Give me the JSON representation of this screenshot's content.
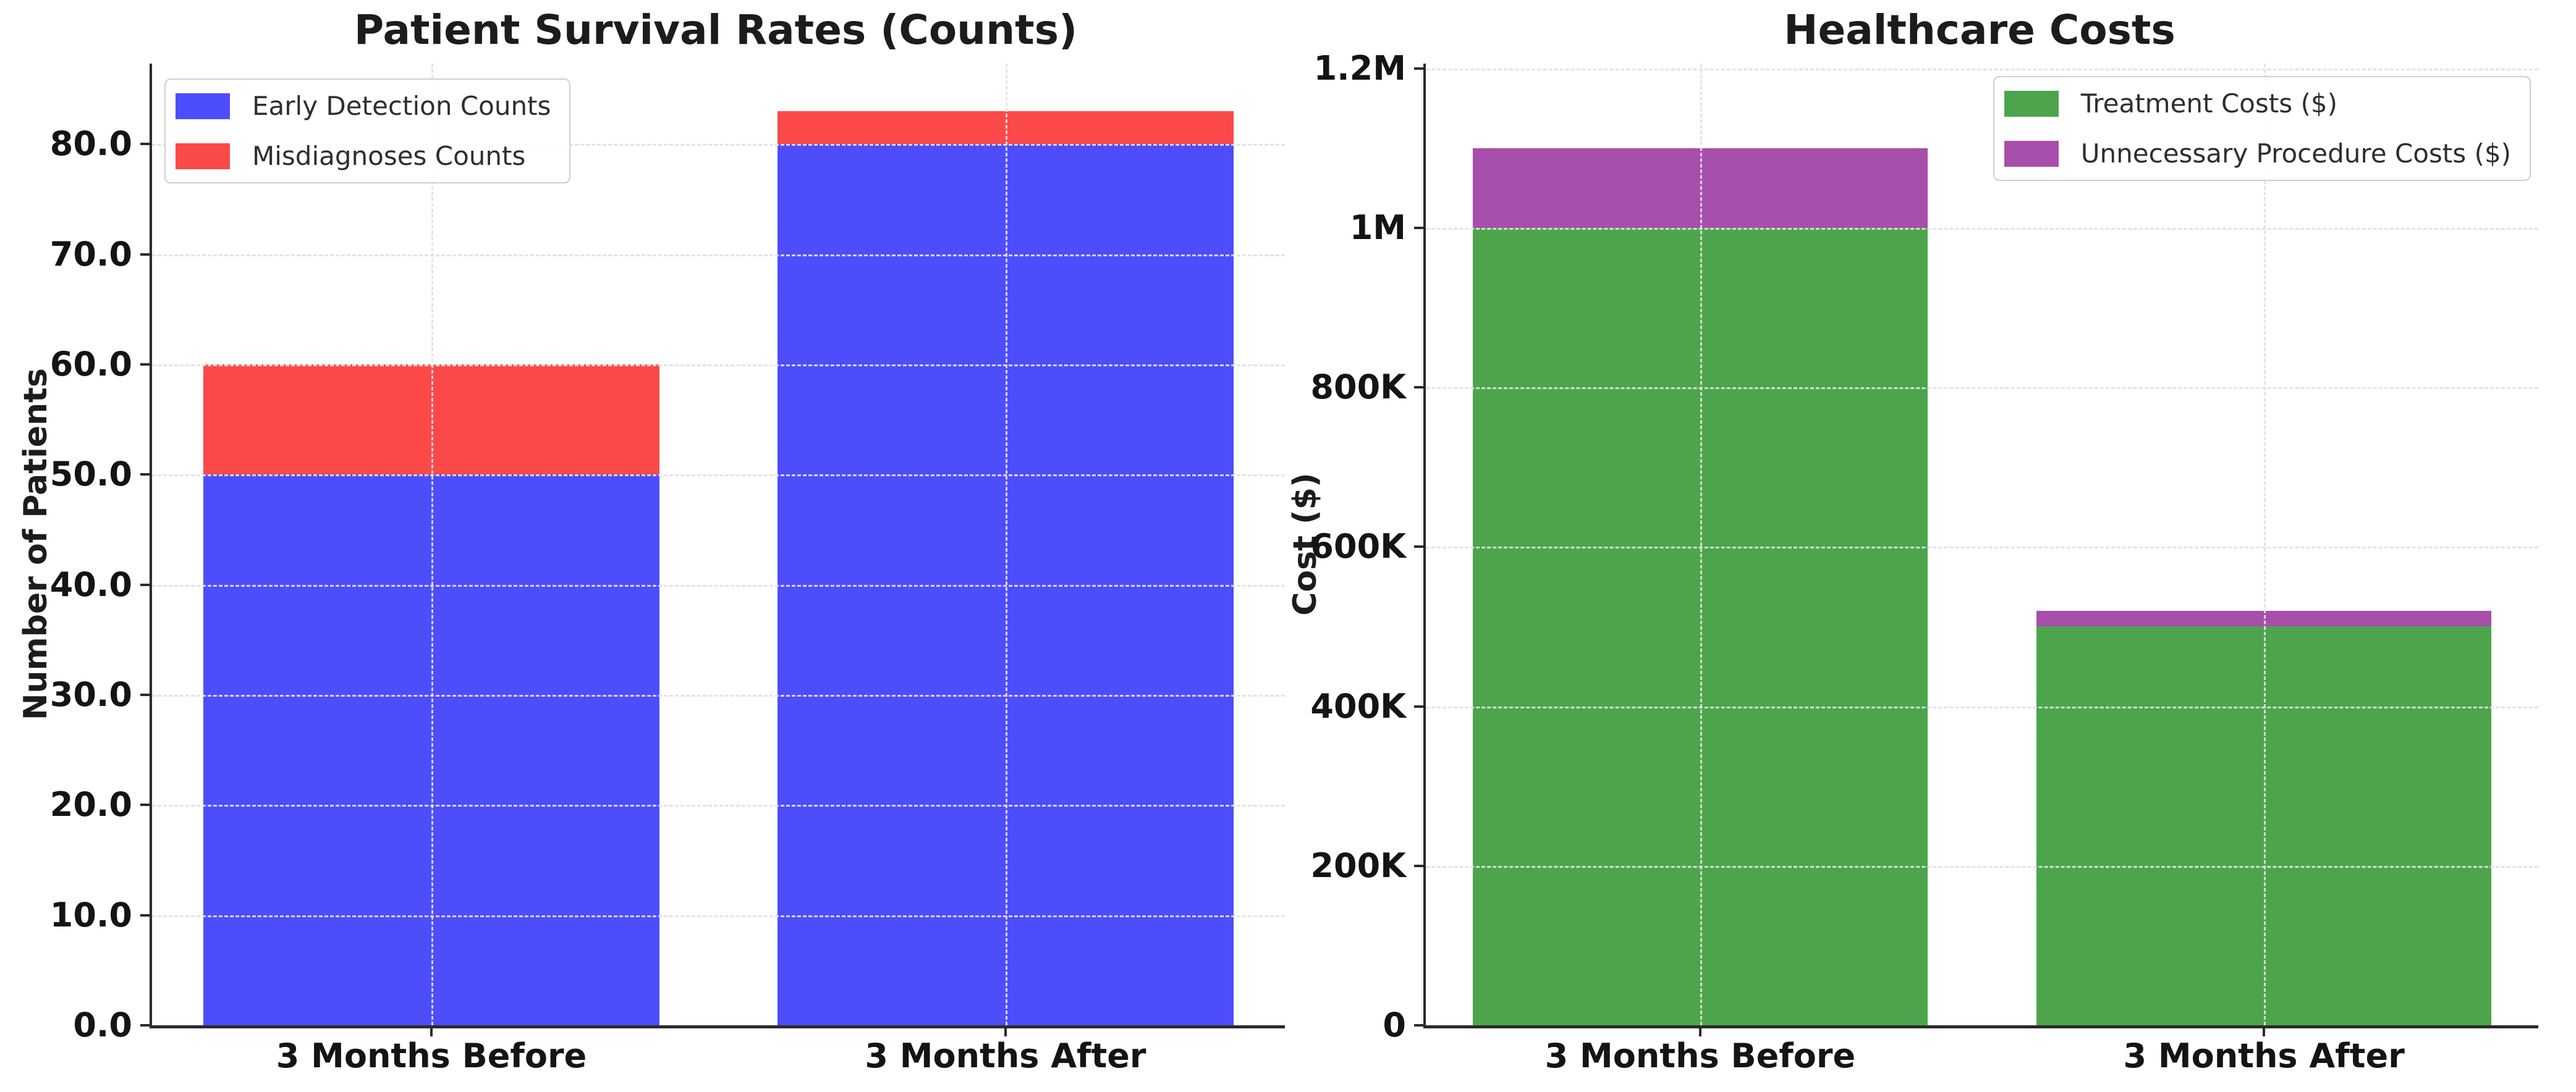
{
  "figure": {
    "background": "#ffffff"
  },
  "chart_data": [
    {
      "type": "bar",
      "stacked": true,
      "title": "Patient Survival Rates (Counts)",
      "ylabel": "Number of Patients",
      "xlabel": "",
      "categories": [
        "3 Months Before",
        "3 Months After"
      ],
      "series": [
        {
          "name": "Early Detection Counts",
          "color": "#4D4DFB",
          "values": [
            50,
            80
          ]
        },
        {
          "name": "Misdiagnoses Counts",
          "color": "#FB4949",
          "values": [
            10,
            3
          ]
        }
      ],
      "totals": [
        60,
        83
      ],
      "ylim": [
        0,
        87.3
      ],
      "yticks": [
        {
          "value": 0,
          "label": "0.0"
        },
        {
          "value": 10,
          "label": "10.0"
        },
        {
          "value": 20,
          "label": "20.0"
        },
        {
          "value": 30,
          "label": "30.0"
        },
        {
          "value": 40,
          "label": "40.0"
        },
        {
          "value": 50,
          "label": "50.0"
        },
        {
          "value": 60,
          "label": "60.0"
        },
        {
          "value": 70,
          "label": "70.0"
        },
        {
          "value": 80,
          "label": "80.0"
        }
      ],
      "grid": "dashed",
      "legend_position": "upper left"
    },
    {
      "type": "bar",
      "stacked": true,
      "title": "Healthcare Costs",
      "ylabel": "Cost ($)",
      "xlabel": "",
      "categories": [
        "3 Months Before",
        "3 Months After"
      ],
      "series": [
        {
          "name": "Treatment Costs ($)",
          "color": "#4CA54C",
          "values": [
            1000000,
            500000
          ]
        },
        {
          "name": "Unnecessary Procedure Costs ($)",
          "color": "#A84EAB",
          "values": [
            100000,
            20000
          ]
        }
      ],
      "totals": [
        1100000,
        520000
      ],
      "ylim": [
        0,
        1206000
      ],
      "yticks": [
        {
          "value": 0,
          "label": "0"
        },
        {
          "value": 200000,
          "label": "200K"
        },
        {
          "value": 400000,
          "label": "400K"
        },
        {
          "value": 600000,
          "label": "600K"
        },
        {
          "value": 800000,
          "label": "800K"
        },
        {
          "value": 1000000,
          "label": "1M"
        },
        {
          "value": 1200000,
          "label": "1.2M"
        }
      ],
      "grid": "dashed",
      "legend_position": "upper right"
    }
  ]
}
